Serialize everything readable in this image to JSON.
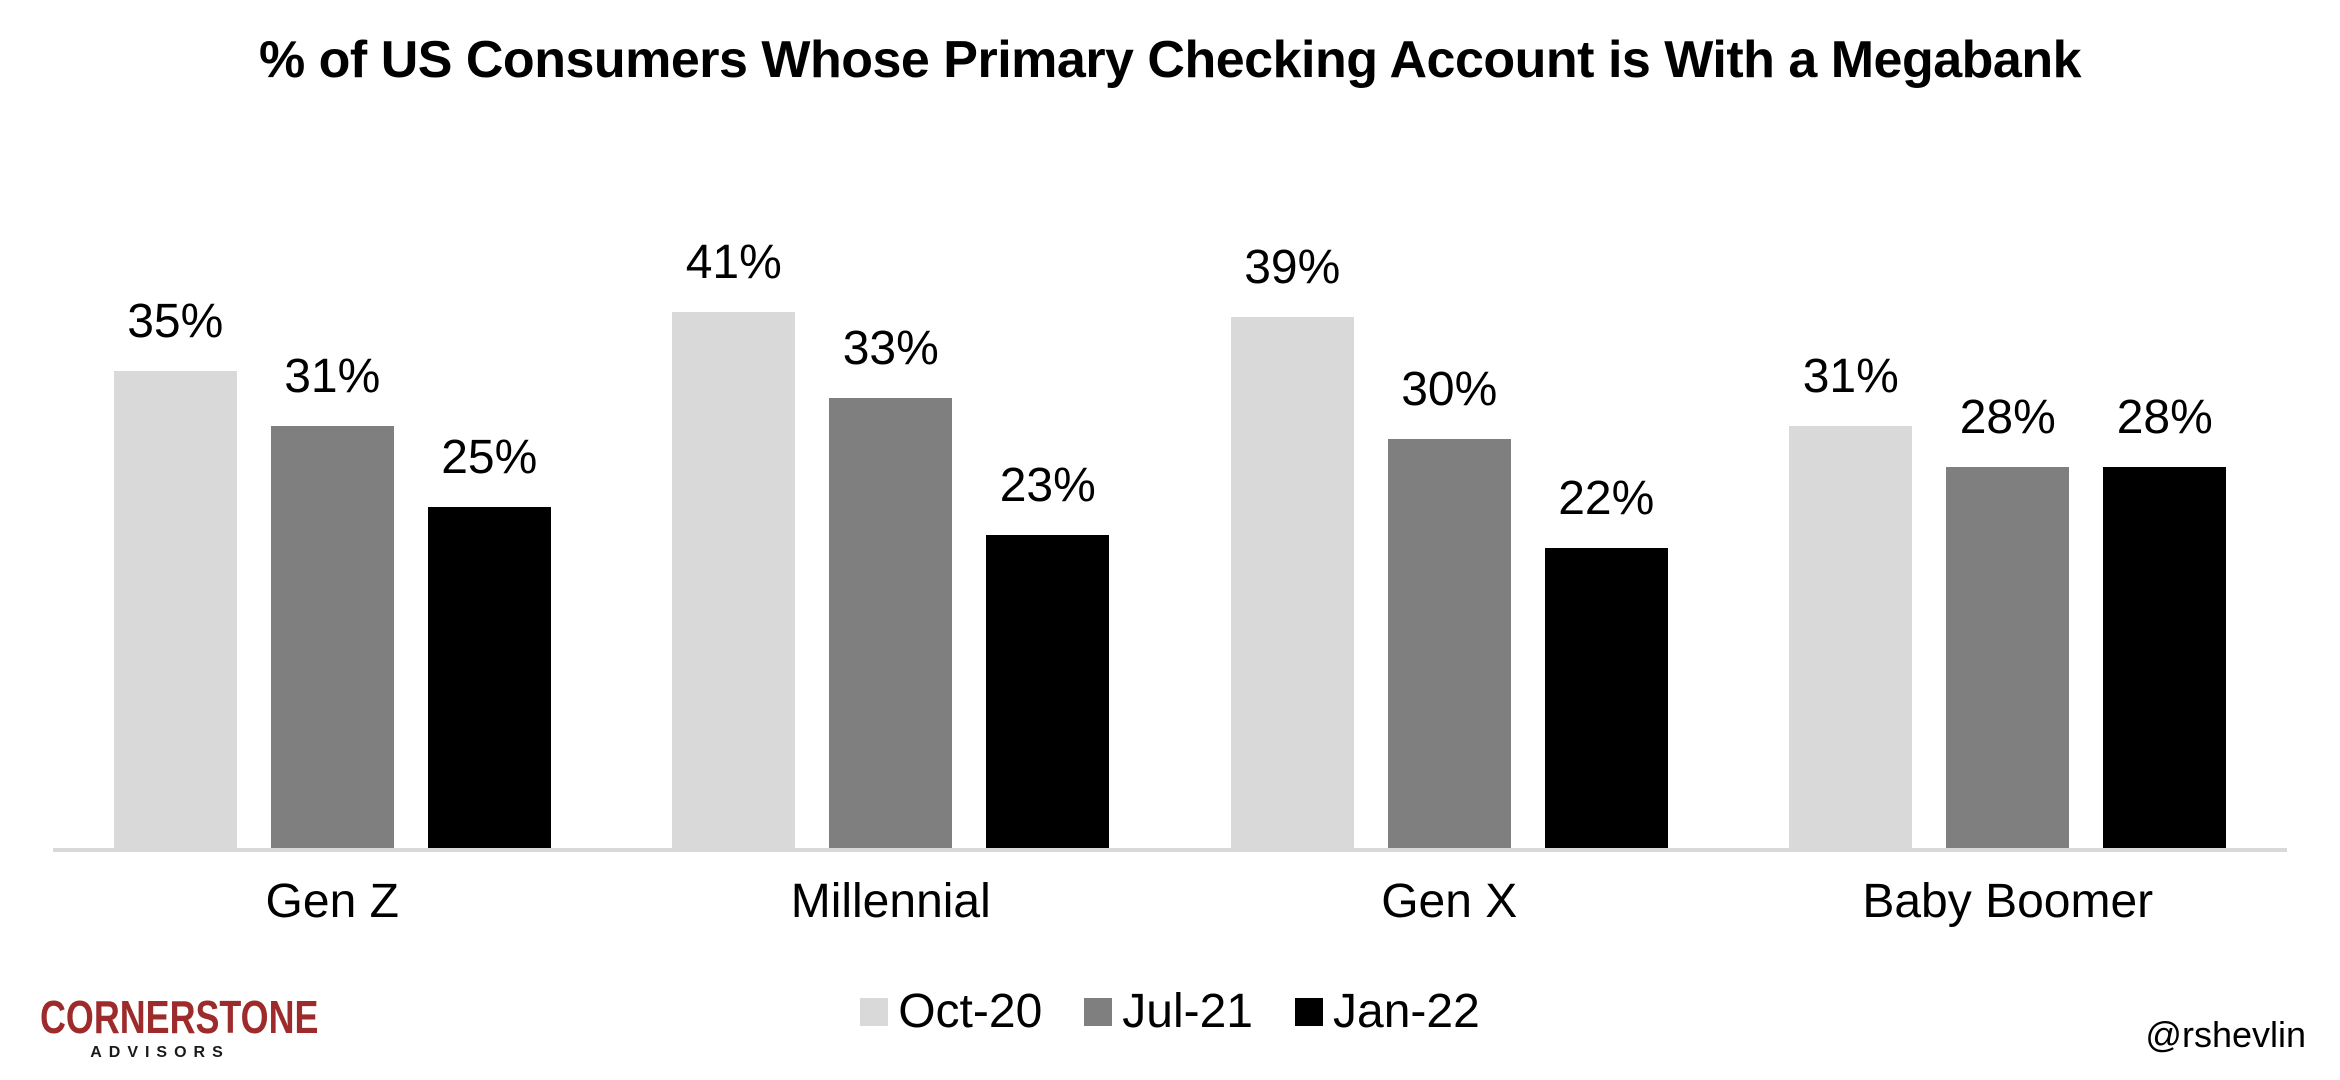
{
  "chart_data": {
    "type": "bar",
    "title": "% of US Consumers Whose Primary Checking Account is With a Megabank",
    "categories": [
      "Gen Z",
      "Millennial",
      "Gen X",
      "Baby Boomer"
    ],
    "series": [
      {
        "name": "Oct-20",
        "color": "#D9D9D9",
        "values": [
          35,
          41,
          39,
          31
        ]
      },
      {
        "name": "Jul-21",
        "color": "#7F7F7F",
        "values": [
          31,
          33,
          30,
          28
        ]
      },
      {
        "name": "Jan-22",
        "color": "#000000",
        "values": [
          25,
          23,
          22,
          28
        ]
      }
    ],
    "value_suffix": "%",
    "data_labels": true,
    "ylim": [
      0,
      45
    ],
    "grid": false,
    "legend_position": "bottom",
    "axis_line_color": "#D9D9D9"
  },
  "footer": {
    "brand": {
      "line1": "CORNERSTONE",
      "line2": "ADVISORS",
      "color": "#9E2B2B"
    },
    "attribution": "@rshevlin"
  }
}
